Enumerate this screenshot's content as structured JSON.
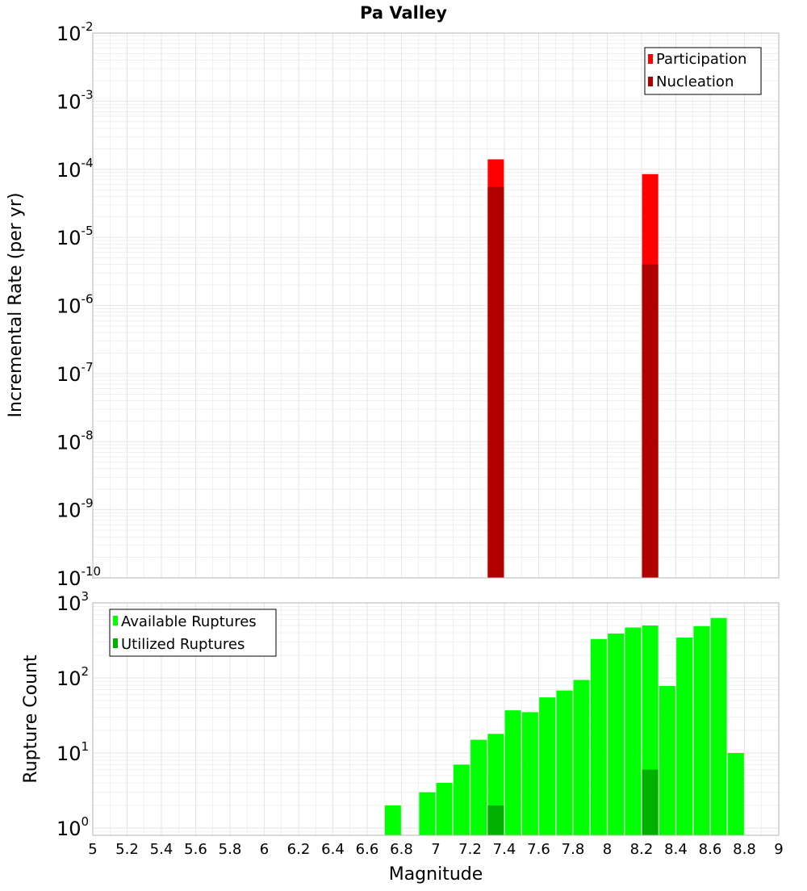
{
  "title": "Pa Valley",
  "xlabel": "Magnitude",
  "xticks": [
    "5",
    "5.2",
    "5.4",
    "5.6",
    "5.8",
    "6",
    "6.2",
    "6.4",
    "6.6",
    "6.8",
    "7",
    "7.2",
    "7.4",
    "7.6",
    "7.8",
    "8",
    "8.2",
    "8.4",
    "8.6",
    "8.8",
    "9"
  ],
  "colors": {
    "participation": "#ff0000",
    "nucleation": "#b00000",
    "available": "#00ff00",
    "utilized": "#00b000",
    "grid": "#e6e6e6",
    "frame": "#b4b4b4"
  },
  "chart_data": [
    {
      "type": "bar",
      "title": "Pa Valley",
      "xlabel": "Magnitude",
      "ylabel": "Incremental Rate (per yr)",
      "yscale": "log",
      "xlim": [
        5,
        9
      ],
      "ylim": [
        1e-10,
        0.01
      ],
      "ytick_exponents": [
        "-10",
        "-9",
        "-8",
        "-7",
        "-6",
        "-5",
        "-4",
        "-3",
        "-2"
      ],
      "legend": {
        "position": "top-right",
        "entries": [
          "Participation",
          "Nucleation"
        ]
      },
      "series": [
        {
          "name": "Participation",
          "x": [
            7.35,
            8.25
          ],
          "values": [
            0.00014,
            8.5e-05
          ]
        },
        {
          "name": "Nucleation",
          "x": [
            7.35,
            8.25
          ],
          "values": [
            5.5e-05,
            4e-06
          ]
        }
      ]
    },
    {
      "type": "bar",
      "xlabel": "Magnitude",
      "ylabel": "Rupture Count",
      "yscale": "log",
      "xlim": [
        5,
        9
      ],
      "ylim": [
        0.8,
        1000
      ],
      "ytick_exponents": [
        "0",
        "1",
        "2",
        "3"
      ],
      "legend": {
        "position": "top-left",
        "entries": [
          "Available Ruptures",
          "Utilized Ruptures"
        ]
      },
      "series": [
        {
          "name": "Available Ruptures",
          "x": [
            6.75,
            6.95,
            7.05,
            7.15,
            7.25,
            7.35,
            7.45,
            7.55,
            7.65,
            7.75,
            7.85,
            7.95,
            8.05,
            8.15,
            8.25,
            8.35,
            8.45,
            8.55,
            8.65,
            8.75
          ],
          "values": [
            2,
            3,
            4,
            7,
            15,
            18,
            37,
            35,
            55,
            68,
            94,
            330,
            390,
            470,
            500,
            78,
            345,
            490,
            630,
            10
          ]
        },
        {
          "name": "Utilized Ruptures",
          "x": [
            7.35,
            8.25
          ],
          "values": [
            2,
            6
          ]
        }
      ]
    }
  ]
}
